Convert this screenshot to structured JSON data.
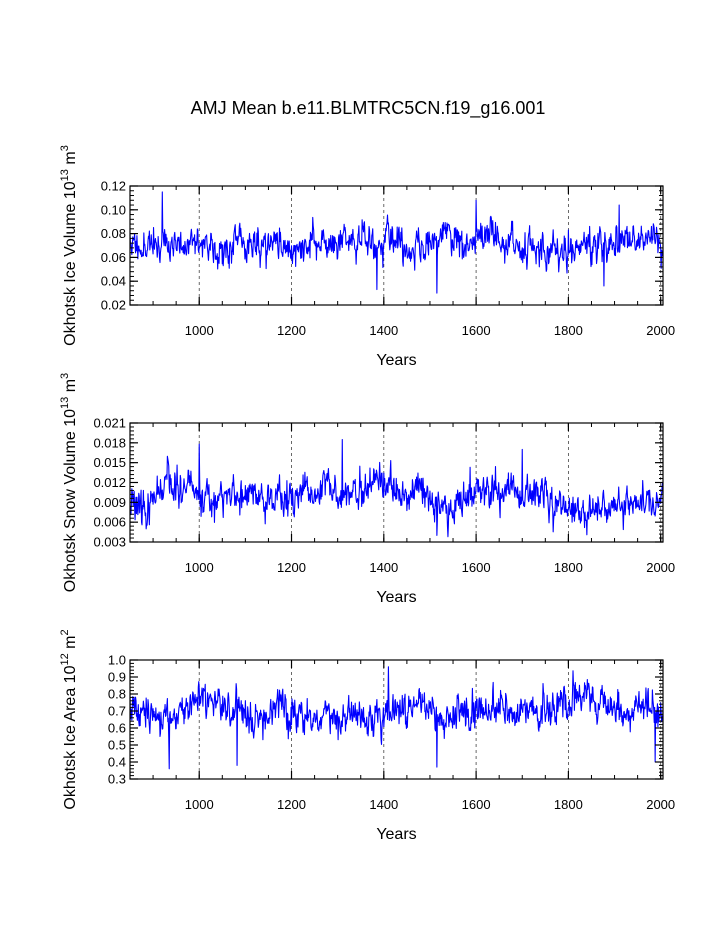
{
  "figure": {
    "title": "AMJ Mean b.e11.BLMTRC5CN.f19_g16.001"
  },
  "colors": {
    "series": "#0000ff",
    "axis": "#000000",
    "grid": "#444444"
  },
  "chart_data": [
    {
      "type": "line",
      "ylabel_main": "Okhotsk Ice Volume 10",
      "ylabel_exp": "13",
      "ylabel_unit": " m",
      "ylabel_unit_exp": "3",
      "xlabel": "Years",
      "xlim": [
        850,
        2005
      ],
      "ylim": [
        0.02,
        0.12
      ],
      "xticks": [
        1000,
        1200,
        1400,
        1600,
        1800,
        2000
      ],
      "yticks": [
        0.02,
        0.04,
        0.06,
        0.08,
        0.1,
        0.12
      ],
      "ytick_labels": [
        "0.02",
        "0.04",
        "0.06",
        "0.08",
        "0.10",
        "0.12"
      ],
      "mean": 0.071,
      "sd": 0.0115,
      "min": 0.03,
      "max": 0.115,
      "seed": 11,
      "features": [
        [
          920,
          0.115
        ],
        [
          1385,
          0.033
        ],
        [
          1515,
          0.03
        ],
        [
          1600,
          0.108
        ],
        [
          1877,
          0.036
        ],
        [
          1910,
          0.104
        ]
      ]
    },
    {
      "type": "line",
      "ylabel_main": "Okhotsk Snow Volume 10",
      "ylabel_exp": "13",
      "ylabel_unit": " m",
      "ylabel_unit_exp": "3",
      "xlabel": "Years",
      "xlim": [
        850,
        2005
      ],
      "ylim": [
        0.003,
        0.021
      ],
      "xticks": [
        1000,
        1200,
        1400,
        1600,
        1800,
        2000
      ],
      "yticks": [
        0.003,
        0.006,
        0.009,
        0.012,
        0.015,
        0.018,
        0.021
      ],
      "ytick_labels": [
        "0.003",
        "0.006",
        "0.009",
        "0.012",
        "0.015",
        "0.018",
        "0.021"
      ],
      "mean": 0.0095,
      "sd": 0.0022,
      "min": 0.0038,
      "max": 0.0185,
      "seed": 23,
      "features": [
        [
          1310,
          0.0185
        ],
        [
          1000,
          0.0178
        ],
        [
          1700,
          0.017
        ],
        [
          1515,
          0.004
        ]
      ]
    },
    {
      "type": "line",
      "ylabel_main": "Okhotsk Ice Area 10",
      "ylabel_exp": "12",
      "ylabel_unit": " m",
      "ylabel_unit_exp": "2",
      "xlabel": "Years",
      "xlim": [
        850,
        2005
      ],
      "ylim": [
        0.3,
        1.0
      ],
      "xticks": [
        1000,
        1200,
        1400,
        1600,
        1800,
        2000
      ],
      "yticks": [
        0.3,
        0.4,
        0.5,
        0.6,
        0.7,
        0.8,
        0.9,
        1.0
      ],
      "ytick_labels": [
        "0.3",
        "0.4",
        "0.5",
        "0.6",
        "0.7",
        "0.8",
        "0.9",
        "1.0"
      ],
      "mean": 0.7,
      "sd": 0.085,
      "min": 0.36,
      "max": 0.96,
      "seed": 37,
      "features": [
        [
          935,
          0.36
        ],
        [
          1082,
          0.38
        ],
        [
          1410,
          0.96
        ],
        [
          1515,
          0.37
        ],
        [
          1988,
          0.4
        ]
      ]
    }
  ]
}
